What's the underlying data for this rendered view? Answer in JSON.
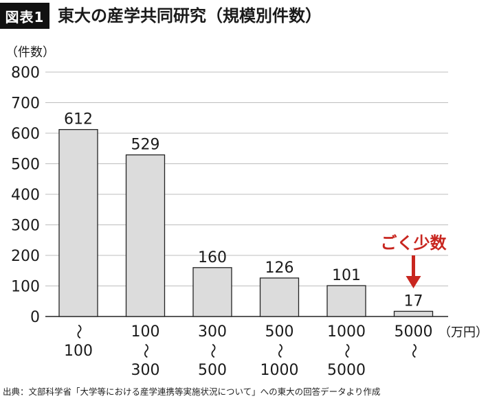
{
  "header": {
    "badge": "図表1",
    "title": "東大の産学共同研究（規模別件数）"
  },
  "source": "出典：文部科学省「大学等における産学連携等実施状況について」への東大の回答データより作成",
  "chart_data": {
    "type": "bar",
    "ylabel": "（件数）",
    "xunit": "（万円）",
    "ylim": [
      0,
      800
    ],
    "yticks": [
      0,
      100,
      200,
      300,
      400,
      500,
      600,
      700,
      800
    ],
    "grid": true,
    "categories": [
      [
        "〜",
        "100"
      ],
      [
        "100",
        "〜",
        "300"
      ],
      [
        "300",
        "〜",
        "500"
      ],
      [
        "500",
        "〜",
        "1000"
      ],
      [
        "1000",
        "〜",
        "5000"
      ],
      [
        "5000",
        "〜"
      ]
    ],
    "values": [
      612,
      529,
      160,
      126,
      101,
      17
    ],
    "bar_color": "#dcdcdc",
    "annotation": {
      "text": "ごく少数",
      "target_index": 5,
      "color": "#c8261f"
    }
  }
}
